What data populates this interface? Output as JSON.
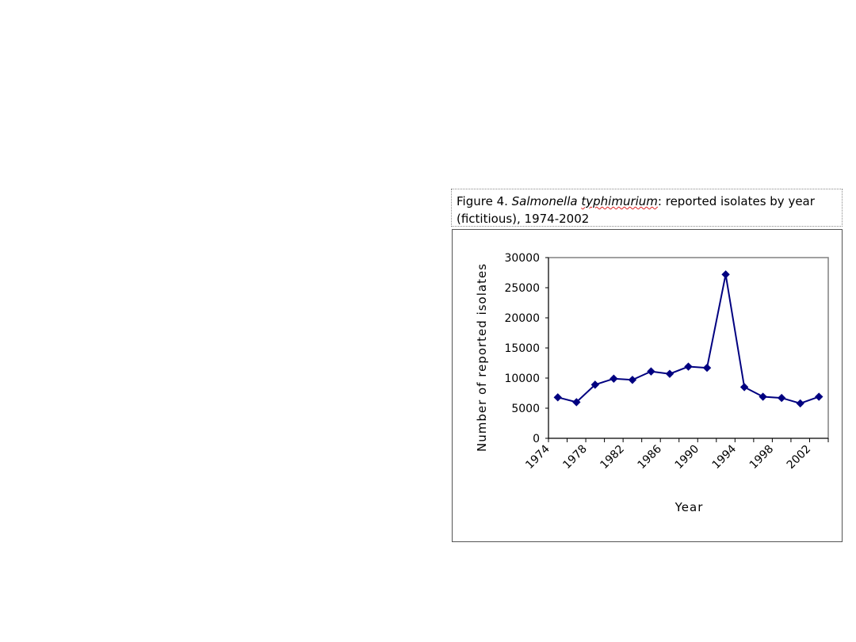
{
  "caption": {
    "prefix": "Figure 4. ",
    "organism_genus": "Salmonella",
    "organism_species": "typhimurium",
    "suffix_line1": ": reported isolates by year",
    "line2": "(fictitious), 1974-2002"
  },
  "chart_data": {
    "type": "line",
    "title": "",
    "xlabel": "Year",
    "ylabel": "Number of reported isolates",
    "x_tick_labels": [
      "1974",
      "1978",
      "1982",
      "1986",
      "1990",
      "1994",
      "1998",
      "2002"
    ],
    "y_tick_labels": [
      "0",
      "5000",
      "10000",
      "15000",
      "20000",
      "25000",
      "30000"
    ],
    "ylim": [
      0,
      30000
    ],
    "xlim": [
      1974,
      2004
    ],
    "grid": false,
    "legend": "none",
    "series": [
      {
        "marker": "diamond",
        "color": "#000080",
        "x": [
          1974,
          1976,
          1978,
          1980,
          1982,
          1984,
          1986,
          1988,
          1990,
          1992,
          1994,
          1996,
          1998,
          2000,
          2002
        ],
        "y": [
          6800,
          6000,
          8900,
          9900,
          9700,
          11100,
          10700,
          11900,
          11700,
          27200,
          8500,
          6900,
          6700,
          5800,
          6900
        ]
      }
    ]
  }
}
